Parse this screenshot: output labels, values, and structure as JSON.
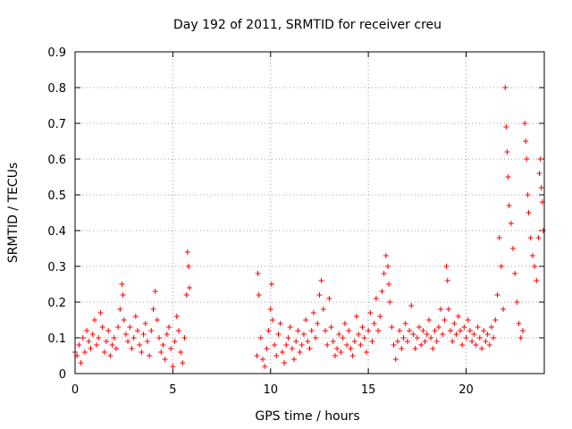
{
  "chart_data": {
    "type": "scatter",
    "title": "Day 192 of 2011, SRMTID for receiver creu",
    "xlabel": "GPS time / hours",
    "ylabel": "SRMTID / TECUs",
    "xlim": [
      0,
      24
    ],
    "ylim": [
      0,
      0.9
    ],
    "xticks": [
      0,
      5,
      10,
      15,
      20
    ],
    "xtick_labels": [
      "0",
      "5",
      "10",
      "15",
      "20"
    ],
    "yticks": [
      0,
      0.1,
      0.2,
      0.3,
      0.4,
      0.5,
      0.6,
      0.7,
      0.8,
      0.9
    ],
    "ytick_labels": [
      "0",
      "0.1",
      "0.2",
      "0.3",
      "0.4",
      "0.5",
      "0.6",
      "0.7",
      "0.8",
      "0.9"
    ],
    "grid": true,
    "marker": "+",
    "series": [
      {
        "name": "SRMTID",
        "color": "#ff0000",
        "points": [
          [
            0.0,
            0.06
          ],
          [
            0.1,
            0.05
          ],
          [
            0.2,
            0.08
          ],
          [
            0.3,
            0.03
          ],
          [
            0.4,
            0.1
          ],
          [
            0.5,
            0.06
          ],
          [
            0.6,
            0.12
          ],
          [
            0.7,
            0.09
          ],
          [
            0.8,
            0.07
          ],
          [
            0.9,
            0.11
          ],
          [
            1.0,
            0.15
          ],
          [
            1.1,
            0.08
          ],
          [
            1.2,
            0.1
          ],
          [
            1.3,
            0.17
          ],
          [
            1.4,
            0.13
          ],
          [
            1.5,
            0.06
          ],
          [
            1.6,
            0.09
          ],
          [
            1.7,
            0.12
          ],
          [
            1.8,
            0.05
          ],
          [
            1.9,
            0.08
          ],
          [
            2.0,
            0.1
          ],
          [
            2.1,
            0.07
          ],
          [
            2.2,
            0.13
          ],
          [
            2.3,
            0.18
          ],
          [
            2.4,
            0.25
          ],
          [
            2.45,
            0.22
          ],
          [
            2.5,
            0.15
          ],
          [
            2.6,
            0.11
          ],
          [
            2.7,
            0.09
          ],
          [
            2.8,
            0.13
          ],
          [
            2.9,
            0.07
          ],
          [
            3.0,
            0.1
          ],
          [
            3.1,
            0.16
          ],
          [
            3.2,
            0.12
          ],
          [
            3.3,
            0.08
          ],
          [
            3.4,
            0.06
          ],
          [
            3.5,
            0.11
          ],
          [
            3.6,
            0.14
          ],
          [
            3.7,
            0.09
          ],
          [
            3.8,
            0.05
          ],
          [
            3.9,
            0.12
          ],
          [
            4.0,
            0.18
          ],
          [
            4.1,
            0.23
          ],
          [
            4.2,
            0.15
          ],
          [
            4.3,
            0.1
          ],
          [
            4.4,
            0.06
          ],
          [
            4.5,
            0.08
          ],
          [
            4.6,
            0.04
          ],
          [
            4.7,
            0.11
          ],
          [
            4.8,
            0.13
          ],
          [
            4.9,
            0.07
          ],
          [
            5.0,
            0.02
          ],
          [
            5.1,
            0.09
          ],
          [
            5.2,
            0.16
          ],
          [
            5.3,
            0.12
          ],
          [
            5.4,
            0.06
          ],
          [
            5.5,
            0.03
          ],
          [
            5.6,
            0.1
          ],
          [
            5.7,
            0.22
          ],
          [
            5.75,
            0.34
          ],
          [
            5.8,
            0.3
          ],
          [
            5.85,
            0.24
          ],
          [
            9.3,
            0.05
          ],
          [
            9.35,
            0.28
          ],
          [
            9.4,
            0.22
          ],
          [
            9.5,
            0.1
          ],
          [
            9.6,
            0.04
          ],
          [
            9.7,
            0.02
          ],
          [
            9.8,
            0.07
          ],
          [
            9.9,
            0.12
          ],
          [
            10.0,
            0.18
          ],
          [
            10.05,
            0.25
          ],
          [
            10.1,
            0.15
          ],
          [
            10.2,
            0.08
          ],
          [
            10.3,
            0.05
          ],
          [
            10.4,
            0.11
          ],
          [
            10.5,
            0.14
          ],
          [
            10.6,
            0.06
          ],
          [
            10.7,
            0.03
          ],
          [
            10.8,
            0.08
          ],
          [
            10.9,
            0.1
          ],
          [
            11.0,
            0.13
          ],
          [
            11.1,
            0.07
          ],
          [
            11.2,
            0.04
          ],
          [
            11.3,
            0.09
          ],
          [
            11.4,
            0.12
          ],
          [
            11.5,
            0.06
          ],
          [
            11.6,
            0.08
          ],
          [
            11.7,
            0.11
          ],
          [
            11.8,
            0.15
          ],
          [
            11.9,
            0.09
          ],
          [
            12.0,
            0.07
          ],
          [
            12.1,
            0.12
          ],
          [
            12.2,
            0.17
          ],
          [
            12.3,
            0.1
          ],
          [
            12.4,
            0.14
          ],
          [
            12.5,
            0.22
          ],
          [
            12.6,
            0.26
          ],
          [
            12.7,
            0.18
          ],
          [
            12.8,
            0.12
          ],
          [
            12.9,
            0.08
          ],
          [
            13.0,
            0.21
          ],
          [
            13.1,
            0.13
          ],
          [
            13.2,
            0.09
          ],
          [
            13.3,
            0.05
          ],
          [
            13.4,
            0.07
          ],
          [
            13.5,
            0.11
          ],
          [
            13.6,
            0.06
          ],
          [
            13.7,
            0.1
          ],
          [
            13.8,
            0.14
          ],
          [
            13.9,
            0.08
          ],
          [
            14.0,
            0.12
          ],
          [
            14.1,
            0.07
          ],
          [
            14.2,
            0.05
          ],
          [
            14.3,
            0.09
          ],
          [
            14.4,
            0.16
          ],
          [
            14.5,
            0.11
          ],
          [
            14.6,
            0.08
          ],
          [
            14.7,
            0.13
          ],
          [
            14.8,
            0.1
          ],
          [
            14.9,
            0.06
          ],
          [
            15.0,
            0.12
          ],
          [
            15.1,
            0.17
          ],
          [
            15.2,
            0.09
          ],
          [
            15.3,
            0.14
          ],
          [
            15.4,
            0.21
          ],
          [
            15.5,
            0.12
          ],
          [
            15.6,
            0.16
          ],
          [
            15.7,
            0.23
          ],
          [
            15.8,
            0.28
          ],
          [
            15.9,
            0.33
          ],
          [
            16.0,
            0.3
          ],
          [
            16.05,
            0.25
          ],
          [
            16.1,
            0.2
          ],
          [
            16.2,
            0.13
          ],
          [
            16.3,
            0.08
          ],
          [
            16.4,
            0.04
          ],
          [
            16.5,
            0.09
          ],
          [
            16.6,
            0.12
          ],
          [
            16.7,
            0.07
          ],
          [
            16.8,
            0.1
          ],
          [
            16.9,
            0.14
          ],
          [
            17.0,
            0.09
          ],
          [
            17.1,
            0.12
          ],
          [
            17.2,
            0.19
          ],
          [
            17.3,
            0.11
          ],
          [
            17.4,
            0.07
          ],
          [
            17.5,
            0.1
          ],
          [
            17.6,
            0.13
          ],
          [
            17.7,
            0.08
          ],
          [
            17.8,
            0.12
          ],
          [
            17.9,
            0.09
          ],
          [
            18.0,
            0.11
          ],
          [
            18.1,
            0.15
          ],
          [
            18.2,
            0.1
          ],
          [
            18.3,
            0.07
          ],
          [
            18.4,
            0.12
          ],
          [
            18.5,
            0.09
          ],
          [
            18.6,
            0.13
          ],
          [
            18.7,
            0.18
          ],
          [
            18.8,
            0.11
          ],
          [
            18.9,
            0.15
          ],
          [
            19.0,
            0.3
          ],
          [
            19.05,
            0.26
          ],
          [
            19.1,
            0.18
          ],
          [
            19.2,
            0.12
          ],
          [
            19.3,
            0.09
          ],
          [
            19.4,
            0.14
          ],
          [
            19.5,
            0.11
          ],
          [
            19.6,
            0.16
          ],
          [
            19.7,
            0.12
          ],
          [
            19.8,
            0.08
          ],
          [
            19.9,
            0.13
          ],
          [
            20.0,
            0.1
          ],
          [
            20.1,
            0.15
          ],
          [
            20.2,
            0.12
          ],
          [
            20.3,
            0.09
          ],
          [
            20.4,
            0.11
          ],
          [
            20.5,
            0.08
          ],
          [
            20.6,
            0.13
          ],
          [
            20.7,
            0.1
          ],
          [
            20.8,
            0.07
          ],
          [
            20.9,
            0.12
          ],
          [
            21.0,
            0.09
          ],
          [
            21.1,
            0.11
          ],
          [
            21.2,
            0.08
          ],
          [
            21.3,
            0.13
          ],
          [
            21.4,
            0.1
          ],
          [
            21.5,
            0.15
          ],
          [
            21.6,
            0.22
          ],
          [
            21.7,
            0.38
          ],
          [
            21.8,
            0.3
          ],
          [
            21.9,
            0.18
          ],
          [
            22.0,
            0.8
          ],
          [
            22.05,
            0.69
          ],
          [
            22.1,
            0.62
          ],
          [
            22.15,
            0.55
          ],
          [
            22.2,
            0.47
          ],
          [
            22.3,
            0.42
          ],
          [
            22.4,
            0.35
          ],
          [
            22.5,
            0.28
          ],
          [
            22.6,
            0.2
          ],
          [
            22.7,
            0.14
          ],
          [
            22.8,
            0.1
          ],
          [
            22.9,
            0.12
          ],
          [
            23.0,
            0.7
          ],
          [
            23.05,
            0.65
          ],
          [
            23.1,
            0.6
          ],
          [
            23.15,
            0.5
          ],
          [
            23.2,
            0.45
          ],
          [
            23.3,
            0.38
          ],
          [
            23.4,
            0.33
          ],
          [
            23.5,
            0.3
          ],
          [
            23.6,
            0.26
          ],
          [
            23.7,
            0.38
          ],
          [
            23.75,
            0.56
          ],
          [
            23.8,
            0.6
          ],
          [
            23.85,
            0.52
          ],
          [
            23.9,
            0.48
          ],
          [
            23.95,
            0.4
          ]
        ]
      }
    ]
  }
}
